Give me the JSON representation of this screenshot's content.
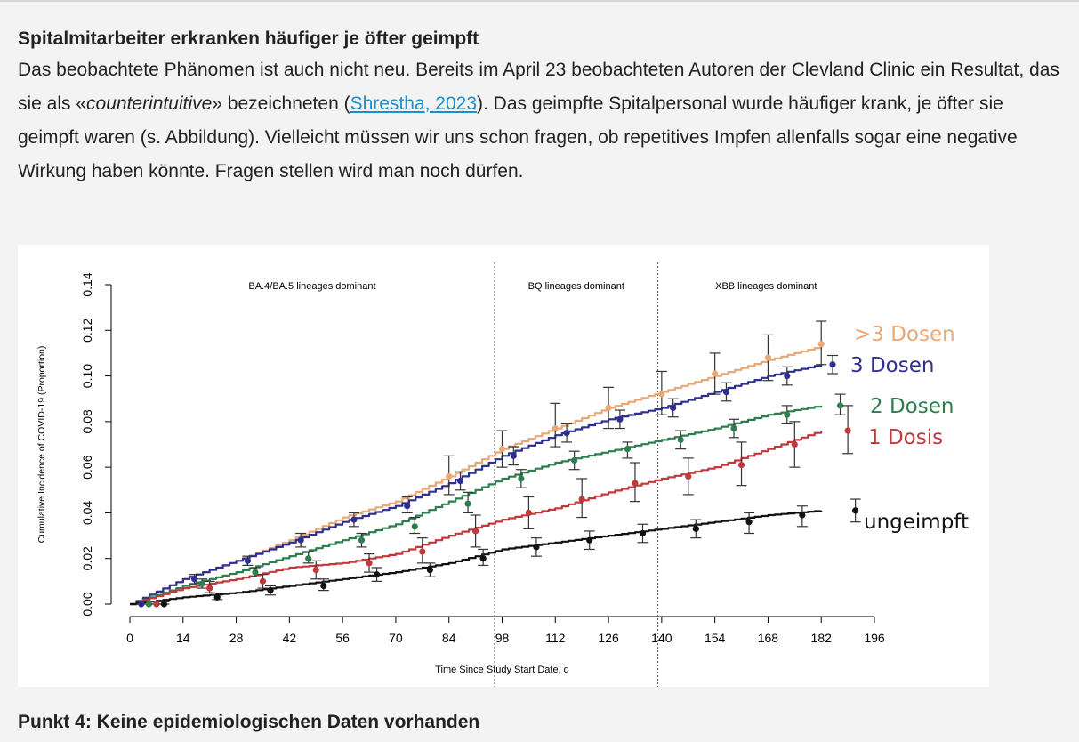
{
  "article": {
    "heading": "Spitalmitarbeiter erkranken häufiger je öfter geimpft",
    "para_part1": "Das beobachtete Phänomen ist auch nicht neu. Bereits im April 23 beobachteten Autoren der Clevland Clinic ein Resultat, das sie als «",
    "para_italic": "counterintuitive",
    "para_part2": "» bezeichneten (",
    "para_link": "Shrestha, 2023",
    "para_part3": "). Das geimpfte Spitalpersonal wurde häufiger krank, je öfter sie geimpft waren (s. Abbildung). Vielleicht müssen wir uns schon fragen, ob repetitives Impfen allenfalls sogar eine negative Wirkung haben könnte. Fragen stellen wird man noch dürfen.",
    "next_heading": "Punkt 4: Keine epidemiologischen Daten vorhanden"
  },
  "chart_data": {
    "type": "line",
    "xlabel": "Time Since Study Start Date, d",
    "ylabel": "Cumulative Incidence of COVID-19 (Proportion)",
    "xlim": [
      0,
      196
    ],
    "ylim": [
      0,
      0.14
    ],
    "xticks": [
      "0",
      "14",
      "28",
      "42",
      "56",
      "70",
      "84",
      "98",
      "112",
      "126",
      "140",
      "154",
      "168",
      "182",
      "196"
    ],
    "yticks": [
      "0.00",
      "0.02",
      "0.04",
      "0.06",
      "0.08",
      "0.10",
      "0.12",
      "0.14"
    ],
    "phases": [
      {
        "label": "BA.4/BA.5 lineages dominant",
        "x_start": 0,
        "x_end": 96
      },
      {
        "label": "BQ lineages dominant",
        "x_start": 96,
        "x_end": 139
      },
      {
        "label": "XBB lineages dominant",
        "x_start": 139,
        "x_end": 196
      }
    ],
    "series": [
      {
        "name": ">3 Dosen",
        "color": "#e8a878",
        "x": [
          0,
          14,
          28,
          42,
          56,
          70,
          84,
          98,
          112,
          126,
          140,
          154,
          168,
          182
        ],
        "y": [
          0,
          0.011,
          0.019,
          0.028,
          0.038,
          0.045,
          0.056,
          0.068,
          0.077,
          0.086,
          0.093,
          0.1,
          0.107,
          0.113
        ],
        "markers": [
          {
            "x": 182,
            "y": 0.114,
            "lo": 0.105,
            "hi": 0.124
          },
          {
            "x": 168,
            "y": 0.108,
            "lo": 0.098,
            "hi": 0.118
          },
          {
            "x": 154,
            "y": 0.101,
            "lo": 0.092,
            "hi": 0.11
          },
          {
            "x": 140,
            "y": 0.092,
            "lo": 0.083,
            "hi": 0.102
          },
          {
            "x": 126,
            "y": 0.086,
            "lo": 0.077,
            "hi": 0.095
          },
          {
            "x": 112,
            "y": 0.077,
            "lo": 0.069,
            "hi": 0.088
          },
          {
            "x": 98,
            "y": 0.068,
            "lo": 0.06,
            "hi": 0.076
          },
          {
            "x": 84,
            "y": 0.056,
            "lo": 0.048,
            "hi": 0.065
          }
        ]
      },
      {
        "name": "3 Dosen",
        "color": "#2f2f8f",
        "x": [
          0,
          14,
          28,
          42,
          56,
          70,
          84,
          98,
          112,
          126,
          140,
          154,
          168,
          182
        ],
        "y": [
          0,
          0.011,
          0.019,
          0.027,
          0.036,
          0.043,
          0.053,
          0.065,
          0.074,
          0.081,
          0.086,
          0.093,
          0.1,
          0.105
        ],
        "markers": [
          {
            "x": 185,
            "y": 0.105,
            "lo": 0.101,
            "hi": 0.109
          },
          {
            "x": 173,
            "y": 0.1,
            "lo": 0.096,
            "hi": 0.104
          },
          {
            "x": 157,
            "y": 0.093,
            "lo": 0.089,
            "hi": 0.097
          },
          {
            "x": 143,
            "y": 0.086,
            "lo": 0.082,
            "hi": 0.09
          },
          {
            "x": 129,
            "y": 0.081,
            "lo": 0.077,
            "hi": 0.085
          },
          {
            "x": 115,
            "y": 0.075,
            "lo": 0.071,
            "hi": 0.079
          },
          {
            "x": 101,
            "y": 0.065,
            "lo": 0.061,
            "hi": 0.069
          },
          {
            "x": 87,
            "y": 0.054,
            "lo": 0.05,
            "hi": 0.058
          },
          {
            "x": 73,
            "y": 0.043,
            "lo": 0.04,
            "hi": 0.047
          },
          {
            "x": 59,
            "y": 0.037,
            "lo": 0.034,
            "hi": 0.04
          },
          {
            "x": 45,
            "y": 0.028,
            "lo": 0.025,
            "hi": 0.031
          },
          {
            "x": 31,
            "y": 0.019,
            "lo": 0.017,
            "hi": 0.021
          },
          {
            "x": 17,
            "y": 0.011,
            "lo": 0.009,
            "hi": 0.013
          },
          {
            "x": 3,
            "y": 0.0,
            "lo": 0.0,
            "hi": 0.001
          }
        ]
      },
      {
        "name": "2 Dosen",
        "color": "#2e7d4f",
        "x": [
          0,
          14,
          28,
          42,
          56,
          70,
          84,
          98,
          112,
          126,
          140,
          154,
          168,
          182
        ],
        "y": [
          0,
          0.008,
          0.014,
          0.021,
          0.028,
          0.035,
          0.045,
          0.055,
          0.062,
          0.067,
          0.072,
          0.077,
          0.083,
          0.087
        ],
        "markers": [
          {
            "x": 187,
            "y": 0.087,
            "lo": 0.083,
            "hi": 0.092
          },
          {
            "x": 173,
            "y": 0.083,
            "lo": 0.079,
            "hi": 0.087
          },
          {
            "x": 159,
            "y": 0.077,
            "lo": 0.073,
            "hi": 0.081
          },
          {
            "x": 145,
            "y": 0.072,
            "lo": 0.068,
            "hi": 0.076
          },
          {
            "x": 131,
            "y": 0.068,
            "lo": 0.064,
            "hi": 0.071
          },
          {
            "x": 117,
            "y": 0.063,
            "lo": 0.059,
            "hi": 0.067
          },
          {
            "x": 103,
            "y": 0.055,
            "lo": 0.051,
            "hi": 0.059
          },
          {
            "x": 89,
            "y": 0.044,
            "lo": 0.04,
            "hi": 0.049
          },
          {
            "x": 75,
            "y": 0.034,
            "lo": 0.031,
            "hi": 0.038
          },
          {
            "x": 61,
            "y": 0.028,
            "lo": 0.025,
            "hi": 0.031
          },
          {
            "x": 47,
            "y": 0.02,
            "lo": 0.018,
            "hi": 0.023
          },
          {
            "x": 33,
            "y": 0.014,
            "lo": 0.012,
            "hi": 0.016
          },
          {
            "x": 19,
            "y": 0.009,
            "lo": 0.007,
            "hi": 0.011
          },
          {
            "x": 5,
            "y": 0.0,
            "lo": 0.0,
            "hi": 0.001
          }
        ]
      },
      {
        "name": "1 Dosis",
        "color": "#c0393b",
        "x": [
          0,
          14,
          28,
          42,
          56,
          70,
          84,
          98,
          112,
          126,
          140,
          154,
          168,
          182
        ],
        "y": [
          0,
          0.007,
          0.011,
          0.016,
          0.018,
          0.022,
          0.03,
          0.037,
          0.042,
          0.049,
          0.055,
          0.06,
          0.068,
          0.076
        ],
        "markers": [
          {
            "x": 189,
            "y": 0.076,
            "lo": 0.066,
            "hi": 0.087
          },
          {
            "x": 175,
            "y": 0.07,
            "lo": 0.06,
            "hi": 0.08
          },
          {
            "x": 161,
            "y": 0.061,
            "lo": 0.052,
            "hi": 0.071
          },
          {
            "x": 147,
            "y": 0.056,
            "lo": 0.048,
            "hi": 0.064
          },
          {
            "x": 133,
            "y": 0.053,
            "lo": 0.045,
            "hi": 0.062
          },
          {
            "x": 119,
            "y": 0.046,
            "lo": 0.038,
            "hi": 0.055
          },
          {
            "x": 105,
            "y": 0.04,
            "lo": 0.033,
            "hi": 0.047
          },
          {
            "x": 91,
            "y": 0.032,
            "lo": 0.025,
            "hi": 0.039
          },
          {
            "x": 77,
            "y": 0.023,
            "lo": 0.018,
            "hi": 0.029
          },
          {
            "x": 63,
            "y": 0.018,
            "lo": 0.014,
            "hi": 0.022
          },
          {
            "x": 49,
            "y": 0.015,
            "lo": 0.011,
            "hi": 0.019
          },
          {
            "x": 35,
            "y": 0.01,
            "lo": 0.007,
            "hi": 0.013
          },
          {
            "x": 21,
            "y": 0.007,
            "lo": 0.005,
            "hi": 0.01
          },
          {
            "x": 7,
            "y": 0.0,
            "lo": 0.0,
            "hi": 0.001
          }
        ]
      },
      {
        "name": "ungeimpft",
        "color": "#111111",
        "x": [
          0,
          14,
          28,
          42,
          56,
          70,
          84,
          98,
          112,
          126,
          140,
          154,
          168,
          182
        ],
        "y": [
          0,
          0.003,
          0.005,
          0.008,
          0.011,
          0.014,
          0.018,
          0.024,
          0.027,
          0.03,
          0.033,
          0.036,
          0.039,
          0.041
        ],
        "markers": [
          {
            "x": 191,
            "y": 0.041,
            "lo": 0.036,
            "hi": 0.046
          },
          {
            "x": 177,
            "y": 0.039,
            "lo": 0.034,
            "hi": 0.043
          },
          {
            "x": 163,
            "y": 0.036,
            "lo": 0.031,
            "hi": 0.04
          },
          {
            "x": 149,
            "y": 0.033,
            "lo": 0.029,
            "hi": 0.037
          },
          {
            "x": 135,
            "y": 0.031,
            "lo": 0.027,
            "hi": 0.035
          },
          {
            "x": 121,
            "y": 0.028,
            "lo": 0.024,
            "hi": 0.032
          },
          {
            "x": 107,
            "y": 0.025,
            "lo": 0.021,
            "hi": 0.029
          },
          {
            "x": 93,
            "y": 0.02,
            "lo": 0.017,
            "hi": 0.024
          },
          {
            "x": 79,
            "y": 0.015,
            "lo": 0.012,
            "hi": 0.018
          },
          {
            "x": 65,
            "y": 0.013,
            "lo": 0.01,
            "hi": 0.016
          },
          {
            "x": 51,
            "y": 0.008,
            "lo": 0.006,
            "hi": 0.011
          },
          {
            "x": 37,
            "y": 0.006,
            "lo": 0.004,
            "hi": 0.008
          },
          {
            "x": 23,
            "y": 0.003,
            "lo": 0.002,
            "hi": 0.004
          },
          {
            "x": 9,
            "y": 0.0,
            "lo": 0.0,
            "hi": 0.001
          }
        ]
      }
    ]
  }
}
